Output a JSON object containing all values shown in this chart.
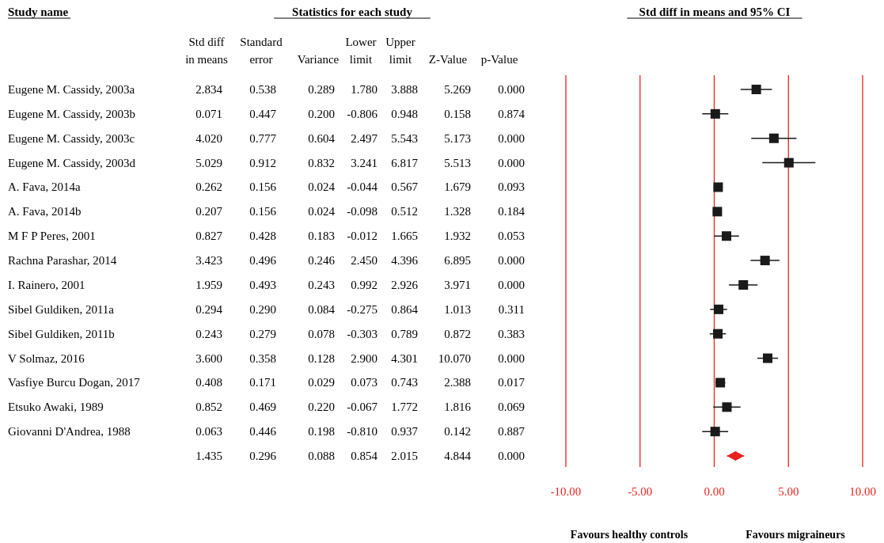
{
  "chart_data": [
    {
      "type": "other",
      "title": "Statistics for each study",
      "ylabel": "Study name",
      "categories": [
        "Std diff\nin means",
        "Standard\nerror",
        "Variance",
        "Lower\nlimit",
        "Upper\nlimit",
        "Z-Value",
        "p-Value"
      ],
      "y_categories": [
        "Eugene M. Cassidy, 2003a",
        "Eugene M. Cassidy, 2003b",
        "Eugene M. Cassidy, 2003c",
        "Eugene M. Cassidy, 2003d",
        "A. Fava, 2014a",
        "A. Fava, 2014b",
        "M F P Peres, 2001",
        "Rachna Parashar, 2014",
        "I. Rainero, 2001",
        "Sibel Guldiken, 2011a",
        "Sibel Guldiken, 2011b",
        "V Solmaz, 2016",
        "Vasfiye Burcu Dogan, 2017",
        "Etsuko Awaki, 1989",
        "Giovanni D'Andrea, 1988",
        null
      ],
      "cell_labels": [
        [
          "2.834",
          "0.538",
          "0.289",
          "1.780",
          "3.888",
          "5.269",
          "0.000"
        ],
        [
          "0.071",
          "0.447",
          "0.200",
          "-0.806",
          "0.948",
          "0.158",
          "0.874"
        ],
        [
          "4.020",
          "0.777",
          "0.604",
          "2.497",
          "5.543",
          "5.173",
          "0.000"
        ],
        [
          "5.029",
          "0.912",
          "0.832",
          "3.241",
          "6.817",
          "5.513",
          "0.000"
        ],
        [
          "0.262",
          "0.156",
          "0.024",
          "-0.044",
          "0.567",
          "1.679",
          "0.093"
        ],
        [
          "0.207",
          "0.156",
          "0.024",
          "-0.098",
          "0.512",
          "1.328",
          "0.184"
        ],
        [
          "0.827",
          "0.428",
          "0.183",
          "-0.012",
          "1.665",
          "1.932",
          "0.053"
        ],
        [
          "3.423",
          "0.496",
          "0.246",
          "2.450",
          "4.396",
          "6.895",
          "0.000"
        ],
        [
          "1.959",
          "0.493",
          "0.243",
          "0.992",
          "2.926",
          "3.971",
          "0.000"
        ],
        [
          "0.294",
          "0.290",
          "0.084",
          "-0.275",
          "0.864",
          "1.013",
          "0.311"
        ],
        [
          "0.243",
          "0.279",
          "0.078",
          "-0.303",
          "0.789",
          "0.872",
          "0.383"
        ],
        [
          "3.600",
          "0.358",
          "0.128",
          "2.900",
          "4.301",
          "10.070",
          "0.000"
        ],
        [
          "0.408",
          "0.171",
          "0.029",
          "0.073",
          "0.743",
          "2.388",
          "0.017"
        ],
        [
          "0.852",
          "0.469",
          "0.220",
          "-0.067",
          "1.772",
          "1.816",
          "0.069"
        ],
        [
          "0.063",
          "0.446",
          "0.198",
          "-0.810",
          "0.937",
          "0.142",
          "0.887"
        ],
        [
          "1.435",
          "0.296",
          "0.088",
          "0.854",
          "2.015",
          "4.844",
          "0.000"
        ]
      ]
    },
    {
      "type": "scatter",
      "orientation": "horizontal",
      "title": "Std diff in means and 95% CI",
      "categories": [
        null,
        null,
        null,
        null,
        null,
        null,
        null,
        null,
        null,
        null,
        null,
        null,
        null,
        null,
        null,
        null
      ],
      "xlim": [
        -10,
        10
      ],
      "xticks": [
        {
          "value": -10,
          "label": "-10.00"
        },
        {
          "value": -5,
          "label": "-5.00"
        },
        {
          "value": 0,
          "label": "0.00"
        },
        {
          "value": 5,
          "label": "5.00"
        },
        {
          "value": 10,
          "label": "10.00"
        }
      ],
      "grid": "x",
      "tick_labels": "x",
      "series": [
        {
          "color": "#1a1a1a",
          "marker": "square",
          "values": [
            2.834,
            0.071,
            4.02,
            5.029,
            0.262,
            0.207,
            0.827,
            3.423,
            1.959,
            0.294,
            0.243,
            3.6,
            0.408,
            0.852,
            0.063,
            null
          ],
          "errors": [
            [
              1.78,
              3.888
            ],
            [
              -0.806,
              0.948
            ],
            [
              2.497,
              5.543
            ],
            [
              3.241,
              6.817
            ],
            [
              -0.044,
              0.567
            ],
            [
              -0.098,
              0.512
            ],
            [
              -0.012,
              1.665
            ],
            [
              2.45,
              4.396
            ],
            [
              0.992,
              2.926
            ],
            [
              -0.275,
              0.864
            ],
            [
              -0.303,
              0.789
            ],
            [
              2.9,
              4.301
            ],
            [
              0.073,
              0.743
            ],
            [
              -0.067,
              1.772
            ],
            [
              -0.81,
              0.937
            ],
            null
          ]
        },
        {
          "color": "#e8231f",
          "marker": "diamond",
          "values": [
            null,
            null,
            null,
            null,
            null,
            null,
            null,
            null,
            null,
            null,
            null,
            null,
            null,
            null,
            null,
            1.435
          ],
          "errors": [
            null,
            null,
            null,
            null,
            null,
            null,
            null,
            null,
            null,
            null,
            null,
            null,
            null,
            null,
            null,
            [
              0.854,
              2.015
            ]
          ]
        }
      ],
      "annotations": [
        "Favours healthy controls",
        "Favours migraineurs"
      ]
    }
  ]
}
